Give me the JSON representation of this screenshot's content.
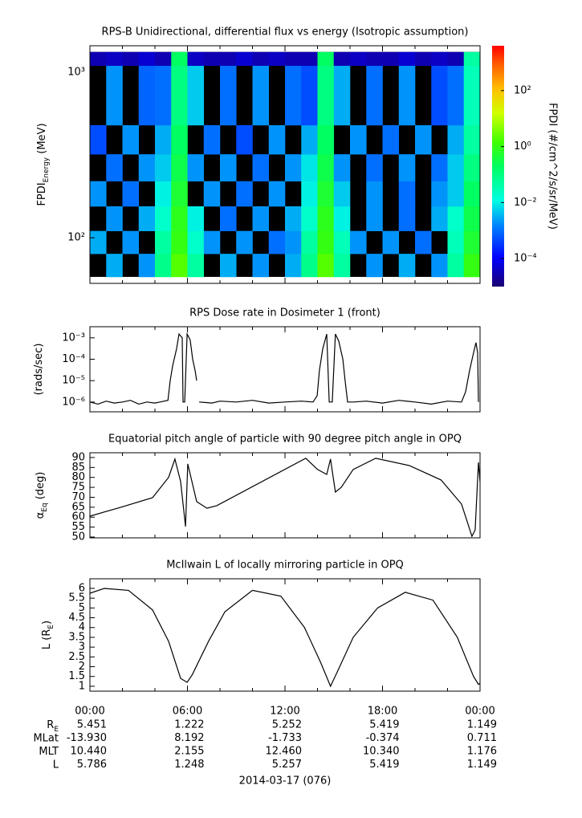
{
  "time_axis": {
    "xlim": [
      0,
      24
    ],
    "xticks": [
      {
        "value": 0,
        "label": "00:00"
      },
      {
        "value": 6,
        "label": "06:00"
      },
      {
        "value": 12,
        "label": "12:00"
      },
      {
        "value": 18,
        "label": "18:00"
      },
      {
        "value": 24,
        "label": "00:00"
      }
    ],
    "xticks_minor": [
      2,
      4,
      8,
      10,
      14,
      16,
      20,
      22
    ],
    "date": "2014-03-17 (076)"
  },
  "chart_data": [
    {
      "type": "heatmap",
      "title": "RPS-B  Unidirectional, differential flux vs energy (Isotropic assumption)",
      "y_label": [
        {
          "text": "FPDI"
        },
        {
          "text": "Energy",
          "sub": true
        },
        {
          "text": " (MeV)"
        }
      ],
      "ylog": true,
      "ylim": [
        53,
        1450
      ],
      "yticks": [
        {
          "value": 100,
          "label": "10²"
        },
        {
          "value": 1000,
          "label": "10³"
        }
      ],
      "time_bins": [
        0,
        1,
        2,
        3,
        4,
        5,
        6,
        7,
        8,
        9,
        10,
        11,
        12,
        13,
        14,
        15,
        16,
        17,
        18,
        19,
        20,
        21,
        22,
        23,
        24
      ],
      "energy_bins": [
        58,
        80,
        110,
        155,
        220,
        320,
        480,
        1100,
        1330
      ],
      "values": [
        [
          null,
          0.003,
          null,
          0.002,
          0.08,
          2,
          0.05,
          null,
          0.003,
          null,
          0.002,
          null,
          0.003,
          0.08,
          2,
          0.05,
          null,
          0.002,
          null,
          0.003,
          null,
          0.002,
          0.05,
          1
        ],
        [
          0.003,
          null,
          0.002,
          null,
          0.05,
          1,
          0.02,
          0.002,
          null,
          0.002,
          null,
          0.001,
          0.002,
          0.05,
          1,
          0.03,
          0.002,
          null,
          0.002,
          null,
          0.001,
          null,
          0.03,
          0.5
        ],
        [
          null,
          0.002,
          null,
          0.003,
          0.02,
          0.8,
          0.01,
          null,
          0.001,
          null,
          0.002,
          null,
          0.003,
          0.02,
          0.8,
          0.01,
          null,
          0.002,
          null,
          0.001,
          null,
          0.003,
          0.02,
          0.3
        ],
        [
          0.002,
          null,
          0.001,
          null,
          0.01,
          0.5,
          null,
          0.002,
          null,
          0.001,
          null,
          0.002,
          null,
          0.01,
          0.5,
          0.005,
          null,
          0.002,
          null,
          0.001,
          null,
          0.002,
          0.005,
          0.2
        ],
        [
          null,
          0.001,
          null,
          0.002,
          0.005,
          0.3,
          0.002,
          null,
          0.002,
          null,
          0.001,
          null,
          0.002,
          0.008,
          0.3,
          0.002,
          null,
          0.001,
          null,
          0.002,
          null,
          0.001,
          0.005,
          0.1
        ],
        [
          0.0005,
          null,
          0.002,
          null,
          0.003,
          0.2,
          null,
          0.001,
          null,
          0.0005,
          null,
          0.002,
          null,
          0.003,
          0.2,
          null,
          0.002,
          null,
          0.001,
          null,
          0.002,
          null,
          0.003,
          0.05
        ],
        [
          null,
          0.002,
          null,
          0.0008,
          0.001,
          0.1,
          0.005,
          null,
          0.001,
          null,
          0.002,
          null,
          0.001,
          0.0005,
          0.1,
          0.003,
          null,
          0.001,
          null,
          0.002,
          null,
          0.0005,
          0.001,
          0.03
        ],
        [
          3e-05,
          4e-05,
          3e-05,
          5e-05,
          3e-05,
          0.2,
          4e-05,
          3e-05,
          3e-05,
          5e-05,
          3e-05,
          4e-05,
          3e-05,
          3e-05,
          0.2,
          3e-05,
          4e-05,
          3e-05,
          3e-05,
          5e-05,
          3e-05,
          4e-05,
          3e-05,
          0.05
        ]
      ],
      "z_label": "FPDI (#/cm^2/s/sr/MeV)",
      "zlim": [
        1e-05,
        4000
      ],
      "zticks": [
        {
          "value": 0.0001,
          "label": "10⁻⁴"
        },
        {
          "value": 0.01,
          "label": "10⁻²"
        },
        {
          "value": 1,
          "label": "10⁰"
        },
        {
          "value": 100,
          "label": "10²"
        }
      ]
    },
    {
      "type": "line",
      "title": "RPS  Dose rate in Dosimeter 1 (front)",
      "y_label": [
        {
          "text": "(rads/sec)"
        }
      ],
      "ylog": true,
      "ylim": [
        3.5e-07,
        0.0033
      ],
      "yticks": [
        {
          "value": 1e-06,
          "label": "10⁻⁶"
        },
        {
          "value": 1e-05,
          "label": "10⁻⁵"
        },
        {
          "value": 0.0001,
          "label": "10⁻⁴"
        },
        {
          "value": 0.001,
          "label": "10⁻³"
        }
      ],
      "color": "#000000",
      "x": [
        0,
        0.5,
        1,
        1.5,
        2,
        2.5,
        3,
        3.5,
        4,
        4.3,
        4.8,
        4.94,
        5.09,
        5.33,
        5.48,
        5.68,
        5.73,
        5.83,
        5.98,
        6.17,
        6.32,
        6.47,
        6.57,
        6.65,
        6.72,
        7.5,
        8,
        9,
        10,
        11,
        12,
        13,
        13.73,
        13.98,
        14.12,
        14.32,
        14.57,
        14.72,
        14.91,
        15.1,
        15.31,
        15.56,
        15.7,
        15.85,
        16.2,
        17,
        18,
        19,
        20,
        21,
        22,
        22.86,
        23.11,
        23.36,
        23.6,
        23.75,
        23.85,
        23.9
      ],
      "values": [
        1e-06,
        8e-07,
        1.1e-06,
        9e-07,
        1e-06,
        1.2e-06,
        8e-07,
        1e-06,
        9e-07,
        1e-06,
        1.2e-06,
        1e-05,
        5e-05,
        0.0003,
        0.0015,
        0.001,
        1e-06,
        1e-06,
        0.0015,
        0.0008,
        0.0001,
        3e-05,
        1e-05,
        null,
        1e-06,
        9e-07,
        1.1e-06,
        1e-06,
        1.2e-06,
        9e-07,
        1e-06,
        1.1e-06,
        1e-06,
        2e-06,
        3e-05,
        0.0003,
        0.0015,
        1e-06,
        1e-06,
        0.0015,
        0.0007,
        0.0001,
        1e-05,
        1e-06,
        1e-06,
        1.1e-06,
        9e-07,
        1.2e-06,
        1e-06,
        8e-07,
        1.1e-06,
        1e-06,
        3e-06,
        3e-05,
        0.0002,
        0.0006,
        0.0002,
        1e-06
      ]
    },
    {
      "type": "line",
      "title": "Equatorial pitch angle of particle with 90 degree pitch angle in OPQ",
      "y_label": [
        {
          "text": "α"
        },
        {
          "text": "Eq",
          "sub": true
        },
        {
          "text": " (deg)"
        }
      ],
      "ylog": false,
      "ylim": [
        49.6,
        92.4
      ],
      "yticks": [
        50,
        55,
        60,
        65,
        70,
        75,
        80,
        85,
        90
      ],
      "color": "#000000",
      "x": [
        0,
        1.9,
        3.85,
        4.84,
        5.23,
        5.58,
        5.88,
        6.02,
        6.57,
        7.2,
        7.8,
        13.28,
        14.0,
        14.57,
        14.8,
        15.1,
        15.46,
        16.2,
        17.58,
        19.65,
        21.6,
        22.86,
        23.5,
        23.7,
        23.9,
        24
      ],
      "values": [
        60.5,
        65,
        69.8,
        80,
        89.2,
        77.9,
        55.3,
        86.8,
        67.8,
        64.5,
        65.8,
        89.6,
        84,
        81.5,
        89.2,
        72.6,
        75,
        84,
        89.6,
        86,
        78.7,
        66.6,
        50.4,
        53.6,
        87.6,
        77.9
      ]
    },
    {
      "type": "line",
      "title": "McIlwain L of locally mirroring particle in OPQ",
      "y_label": [
        {
          "text": "L (R"
        },
        {
          "text": "E",
          "sub": true
        },
        {
          "text": ")"
        }
      ],
      "ylog": false,
      "ylim": [
        0.75,
        6.49
      ],
      "yticks": [
        1,
        1.5,
        2,
        2.5,
        3,
        3.5,
        4,
        4.5,
        5,
        5.5,
        6
      ],
      "color": "#000000",
      "x": [
        0,
        0.89,
        2.37,
        3.85,
        4.84,
        5.58,
        5.98,
        6.3,
        7.3,
        8.3,
        10.0,
        11.75,
        13.2,
        14.2,
        14.8,
        15.2,
        16.2,
        17.7,
        19.4,
        21.1,
        22.6,
        23.6,
        23.9,
        24
      ],
      "values": [
        5.75,
        6.0,
        5.9,
        4.9,
        3.3,
        1.4,
        1.2,
        1.6,
        3.3,
        4.8,
        5.9,
        5.6,
        4.0,
        2.2,
        1.0,
        1.7,
        3.5,
        5.0,
        5.8,
        5.4,
        3.5,
        1.5,
        1.1,
        1.149
      ]
    }
  ],
  "ephemeris": {
    "rows": [
      {
        "label": [
          {
            "text": "R"
          },
          {
            "text": "E",
            "sub": true
          }
        ],
        "values": [
          "5.451",
          "1.222",
          "5.252",
          "5.419",
          "1.149"
        ]
      },
      {
        "label": [
          {
            "text": "MLat"
          }
        ],
        "values": [
          "-13.930",
          "8.192",
          "-1.733",
          "-0.374",
          "0.711"
        ]
      },
      {
        "label": [
          {
            "text": "MLT"
          }
        ],
        "values": [
          "10.440",
          "2.155",
          "12.460",
          "10.340",
          "1.176"
        ]
      },
      {
        "label": [
          {
            "text": "L"
          }
        ],
        "values": [
          "5.786",
          "1.248",
          "5.257",
          "5.419",
          "1.149"
        ]
      }
    ]
  }
}
